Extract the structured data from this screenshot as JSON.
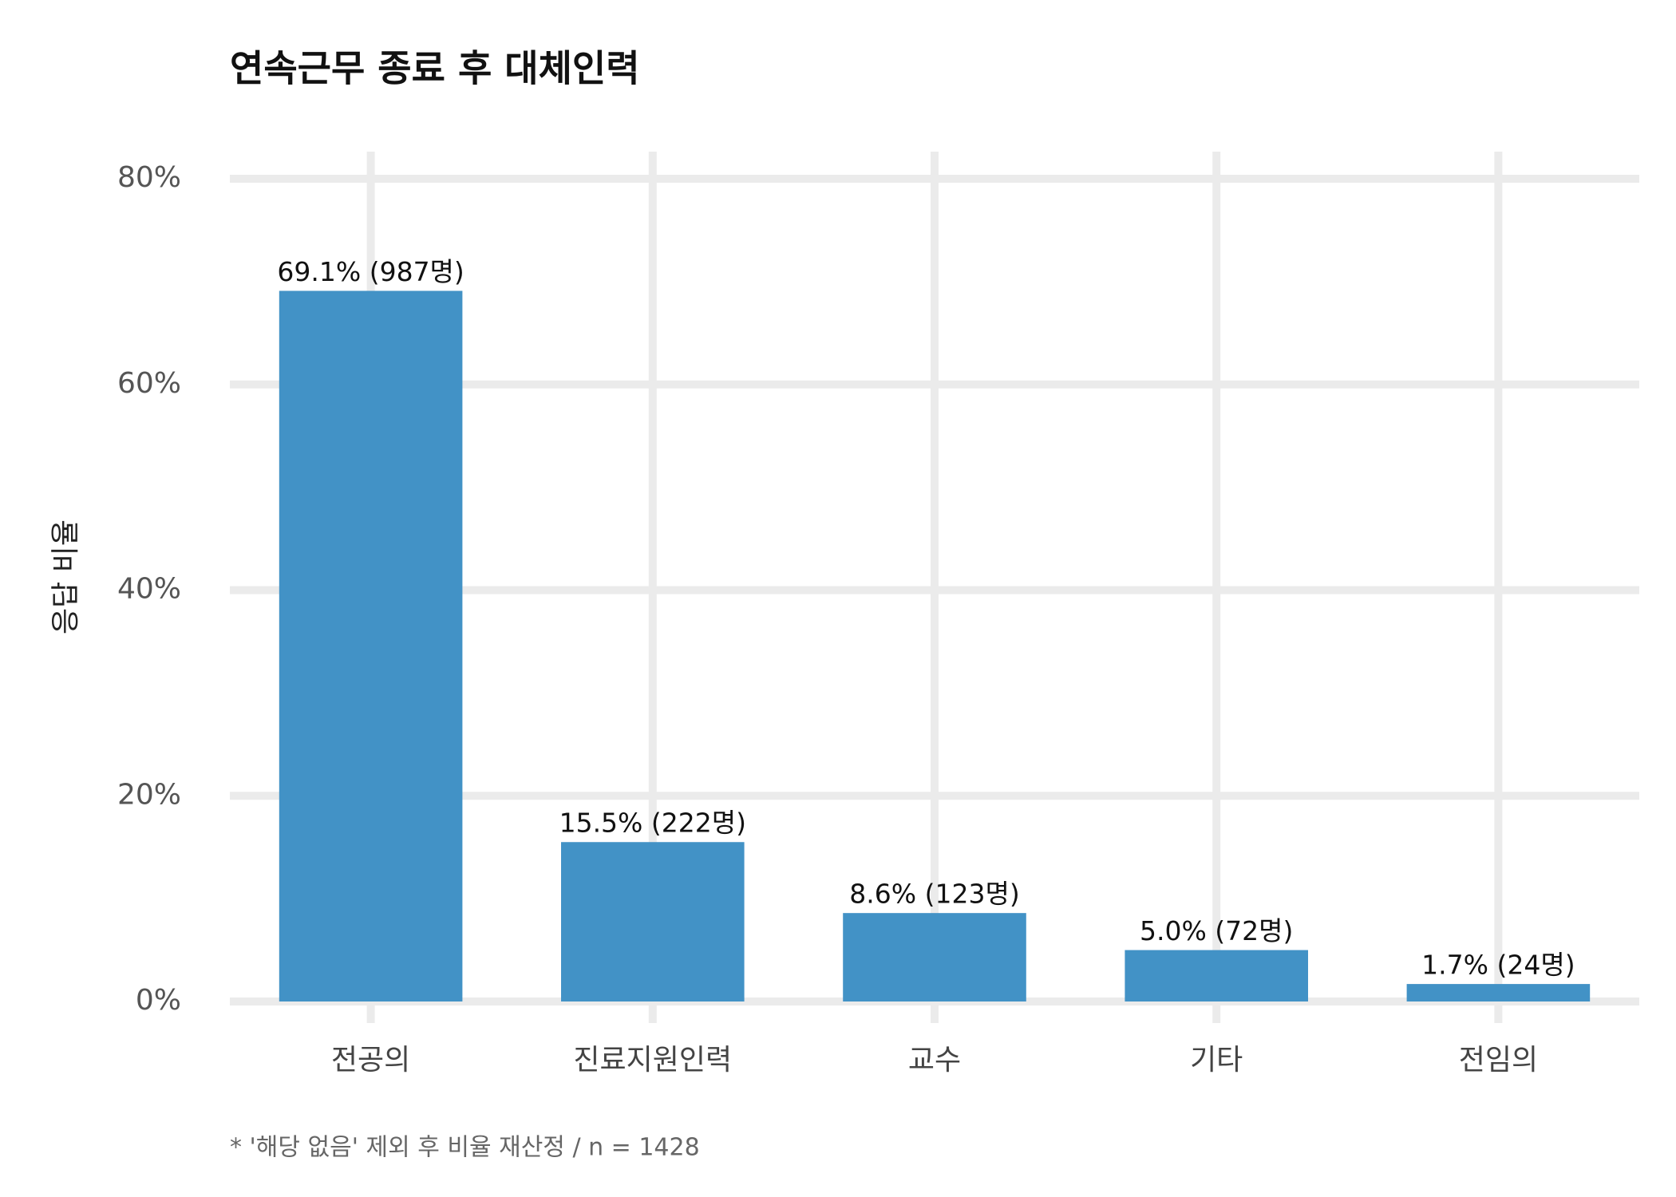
{
  "chart_data": {
    "type": "bar",
    "title": "연속근무 종료 후 대체인력",
    "ylabel": "응답 비율",
    "caption": "* '해당 없음' 제외 후 비율 재산정 / n = 1428",
    "categories": [
      "전공의",
      "진료지원인력",
      "교수",
      "기타",
      "전임의"
    ],
    "values": [
      69.1,
      15.5,
      8.6,
      5.0,
      1.7
    ],
    "value_labels": [
      "69.1% (987명)",
      "15.5% (222명)",
      "8.6% (123명)",
      "5.0% (72명)",
      "1.7% (24명)"
    ],
    "color": "#4292c6",
    "ylim": [
      0,
      80
    ],
    "yticks": [
      {
        "value": 0,
        "label": "0%"
      },
      {
        "value": 20,
        "label": "20%"
      },
      {
        "value": 40,
        "label": "40%"
      },
      {
        "value": 60,
        "label": "60%"
      },
      {
        "value": 80,
        "label": "80%"
      }
    ],
    "grid": true
  }
}
